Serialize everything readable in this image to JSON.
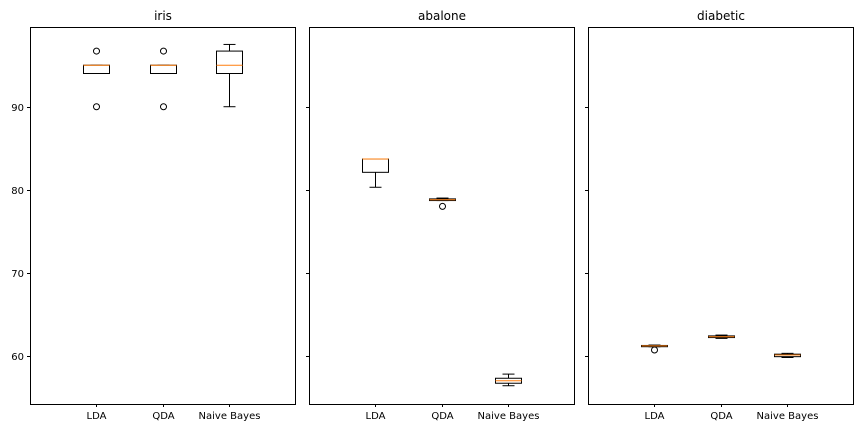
{
  "chart_data": {
    "type": "boxplot",
    "ylim": [
      54.2,
      99.6
    ],
    "yticks": [
      60,
      70,
      80,
      90
    ],
    "shared_y": true,
    "grid": false,
    "colors": {
      "box": "#000000",
      "median": "#ff7f0e",
      "frame": "#000000"
    },
    "categories": [
      "LDA",
      "QDA",
      "Naive Bayes"
    ],
    "panels": [
      {
        "title": "iris",
        "boxes": [
          {
            "category": "LDA",
            "whisker_low": 94.0,
            "q1": 94.0,
            "median": 95.0,
            "q3": 95.0,
            "whisker_high": 95.0,
            "outliers": [
              90.0,
              96.7
            ]
          },
          {
            "category": "QDA",
            "whisker_low": 94.0,
            "q1": 94.0,
            "median": 95.0,
            "q3": 95.0,
            "whisker_high": 95.0,
            "outliers": [
              90.0,
              96.7
            ]
          },
          {
            "category": "Naive Bayes",
            "whisker_low": 90.0,
            "q1": 94.0,
            "median": 95.0,
            "q3": 96.7,
            "whisker_high": 97.5,
            "outliers": []
          }
        ]
      },
      {
        "title": "abalone",
        "boxes": [
          {
            "category": "LDA",
            "whisker_low": 80.3,
            "q1": 82.1,
            "median": 83.7,
            "q3": 83.7,
            "whisker_high": 83.7,
            "outliers": []
          },
          {
            "category": "QDA",
            "whisker_low": 78.7,
            "q1": 78.7,
            "median": 78.8,
            "q3": 78.9,
            "whisker_high": 79.0,
            "outliers": [
              78.0
            ]
          },
          {
            "category": "Naive Bayes",
            "whisker_low": 56.4,
            "q1": 56.7,
            "median": 57.0,
            "q3": 57.3,
            "whisker_high": 57.8,
            "outliers": []
          }
        ]
      },
      {
        "title": "diabetic",
        "boxes": [
          {
            "category": "LDA",
            "whisker_low": 61.1,
            "q1": 61.1,
            "median": 61.2,
            "q3": 61.25,
            "whisker_high": 61.3,
            "outliers": [
              60.7
            ]
          },
          {
            "category": "QDA",
            "whisker_low": 62.1,
            "q1": 62.2,
            "median": 62.3,
            "q3": 62.4,
            "whisker_high": 62.5,
            "outliers": []
          },
          {
            "category": "Naive Bayes",
            "whisker_low": 59.8,
            "q1": 59.9,
            "median": 60.1,
            "q3": 60.2,
            "whisker_high": 60.3,
            "outliers": []
          }
        ]
      }
    ]
  }
}
